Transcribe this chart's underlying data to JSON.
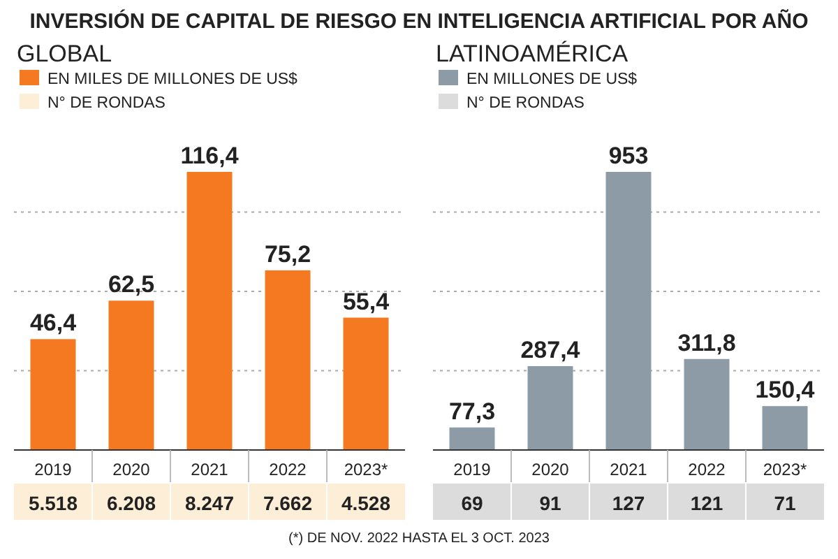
{
  "chart_data": [
    {
      "type": "bar",
      "title": "INVERSIÓN DE CAPITAL DE RIESGO EN INTELIGENCIA ARTIFICIAL POR AÑO",
      "subtitle": "GLOBAL",
      "categories": [
        "2019",
        "2020",
        "2021",
        "2022",
        "2023*"
      ],
      "legend": "top left",
      "series": [
        {
          "name": "EN MILES DE MILLONES DE US$",
          "color": "#f47920",
          "values": [
            46.4,
            62.5,
            116.4,
            75.2,
            55.4
          ],
          "value_labels": [
            "46,4",
            "62,5",
            "116,4",
            "75,2",
            "55,4"
          ]
        }
      ]
    },
    {
      "type": "other",
      "legend": "top left",
      "series": [
        {
          "name": "N° DE RONDAS",
          "color": "#fdeed8",
          "values": [
            5518,
            6208,
            8247,
            7662,
            4528
          ],
          "value_labels": [
            "5.518",
            "6.208",
            "8.247",
            "7.662",
            "4.528"
          ]
        }
      ]
    },
    {
      "type": "bar",
      "subtitle": "LATINOAMÉRICA",
      "categories": [
        "2019",
        "2020",
        "2021",
        "2022",
        "2023*"
      ],
      "legend": "top left",
      "series": [
        {
          "name": "EN MILLONES DE US$",
          "color": "#8c9ba5",
          "values": [
            77.3,
            287.4,
            953,
            311.8,
            150.4
          ],
          "value_labels": [
            "77,3",
            "287,4",
            "953",
            "311,8",
            "150,4"
          ]
        }
      ]
    },
    {
      "type": "other",
      "legend": "top left",
      "annotations": [
        "(*) DE NOV. 2022 HASTA EL 3 OCT. 2023"
      ],
      "series": [
        {
          "name": "N° DE RONDAS",
          "color": "#dcdcdc",
          "values": [
            69,
            91,
            127,
            121,
            71
          ],
          "value_labels": [
            "69",
            "91",
            "127",
            "121",
            "71"
          ]
        }
      ]
    }
  ]
}
